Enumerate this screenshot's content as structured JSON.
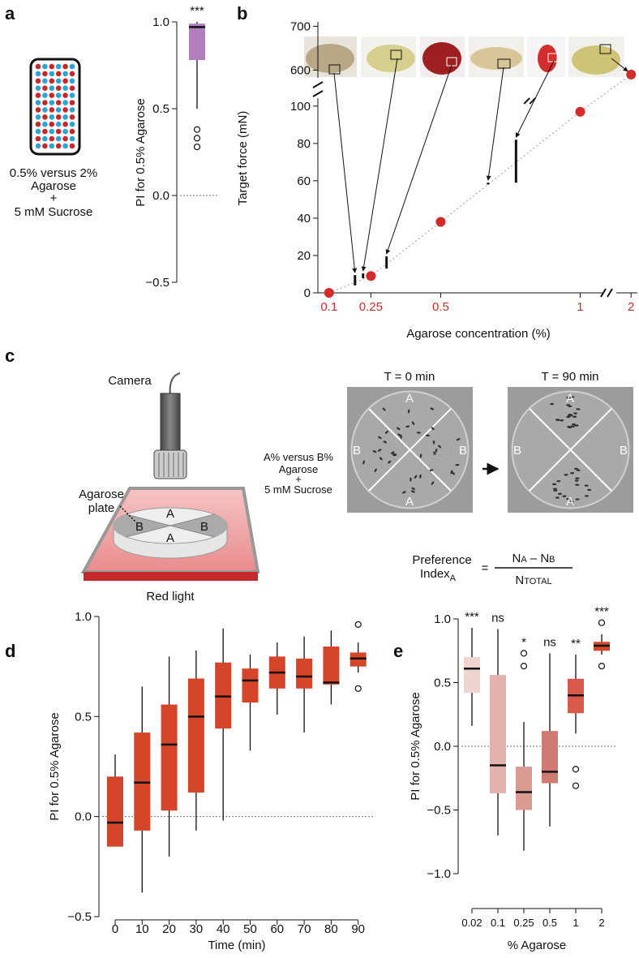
{
  "panel_labels": [
    "a",
    "b",
    "c",
    "d",
    "e"
  ],
  "chart_data": [
    {
      "type": "box",
      "y_label": "PI for 0.5% Agarose",
      "condition": [
        "0.5% versus 2%",
        "Agarose",
        "+",
        "5 mM Sucrose"
      ],
      "ylim": [
        -0.5,
        1.0
      ],
      "yticks": [
        {
          "value": -0.5,
          "label": "−0.5"
        },
        {
          "value": 0,
          "label": "0.0"
        },
        0.5,
        {
          "value": 1,
          "label": "1.0"
        }
      ],
      "ref_line": 0,
      "color": "#b27ebe",
      "boxes": [
        {
          "low": 0.5,
          "q1": 0.78,
          "median": 0.97,
          "q3": 0.99,
          "high": 1.0,
          "outliers": [
            0.38,
            0.33,
            0.28
          ]
        }
      ],
      "annotations": [
        "***"
      ]
    },
    {
      "type": "scatter",
      "y_label": "Target force (mN)",
      "x_label": "Agarose concentration (%)",
      "x": [
        0.1,
        0.25,
        0.5,
        1,
        2
      ],
      "values": [
        0,
        9,
        38,
        97,
        590
      ],
      "color": "#d42a2a",
      "xlim": [
        0.06,
        2.03
      ],
      "x_break": [
        1.08,
        1.93
      ],
      "xticks": [
        0.1,
        0.25,
        0.5,
        1,
        2
      ],
      "ylim": [
        0,
        710
      ],
      "y_break": [
        106,
        575
      ],
      "yticks": [
        0,
        20,
        40,
        60,
        80,
        100,
        600,
        700
      ],
      "ranges": [
        {
          "x": 0.193,
          "low": 4,
          "high": 9.5
        },
        {
          "x": 0.222,
          "low": 7.8,
          "high": 10.4
        },
        {
          "x": 0.306,
          "low": 13,
          "high": 19.5
        },
        {
          "x": 0.67,
          "low": 58,
          "high": 59
        },
        {
          "x": 0.77,
          "low": 59,
          "high": 82
        }
      ]
    },
    {
      "type": "box",
      "y_label": "PI for 0.5% Agarose",
      "x_label": "Time (min)",
      "categories": [
        "0",
        "10",
        "20",
        "30",
        "40",
        "50",
        "60",
        "70",
        "80",
        "90"
      ],
      "ylim": [
        -0.5,
        1.0
      ],
      "yticks": [
        {
          "value": -0.5,
          "label": "−0.5"
        },
        {
          "value": 0,
          "label": "0.0"
        },
        0.5,
        {
          "value": 1,
          "label": "1.0"
        }
      ],
      "ref_line": 0,
      "color": "#d4452a",
      "boxes": [
        {
          "low": -0.15,
          "q1": -0.15,
          "median": -0.03,
          "q3": 0.2,
          "high": 0.31,
          "outliers": []
        },
        {
          "low": -0.38,
          "q1": -0.07,
          "median": 0.17,
          "q3": 0.42,
          "high": 0.65,
          "outliers": []
        },
        {
          "low": -0.2,
          "q1": 0.03,
          "median": 0.36,
          "q3": 0.56,
          "high": 0.8,
          "outliers": []
        },
        {
          "low": -0.07,
          "q1": 0.12,
          "median": 0.5,
          "q3": 0.69,
          "high": 0.83,
          "outliers": []
        },
        {
          "low": -0.02,
          "q1": 0.44,
          "median": 0.6,
          "q3": 0.77,
          "high": 0.94,
          "outliers": []
        },
        {
          "low": 0.33,
          "q1": 0.57,
          "median": 0.68,
          "q3": 0.74,
          "high": 0.81,
          "outliers": []
        },
        {
          "low": 0.51,
          "q1": 0.64,
          "median": 0.72,
          "q3": 0.8,
          "high": 0.87,
          "outliers": []
        },
        {
          "low": 0.42,
          "q1": 0.64,
          "median": 0.7,
          "q3": 0.79,
          "high": 0.9,
          "outliers": []
        },
        {
          "low": 0.56,
          "q1": 0.66,
          "median": 0.67,
          "q3": 0.85,
          "high": 0.93,
          "outliers": []
        },
        {
          "low": 0.72,
          "q1": 0.75,
          "median": 0.79,
          "q3": 0.82,
          "high": 0.87,
          "outliers": [
            0.96,
            0.64
          ]
        }
      ]
    },
    {
      "type": "box",
      "y_label": "PI for 0.5% Agarose",
      "x_label": "% Agarose",
      "categories": [
        "0.02",
        "0.1",
        "0.25",
        "0.5",
        "1",
        "2"
      ],
      "ylim": [
        -1.0,
        1.0
      ],
      "yticks": [
        {
          "value": -1,
          "label": "−1.0"
        },
        {
          "value": -0.5,
          "label": "−0.5"
        },
        {
          "value": 0,
          "label": "0.0"
        },
        0.5,
        {
          "value": 1,
          "label": "1.0"
        }
      ],
      "ref_line": 0,
      "colors": [
        "#efd4d0",
        "#e2b3ac",
        "#da9b93",
        "#cf7b71",
        "#d95a4a",
        "#d4452a"
      ],
      "boxes": [
        {
          "low": 0.16,
          "q1": 0.42,
          "median": 0.61,
          "q3": 0.7,
          "high": 0.93,
          "outliers": []
        },
        {
          "low": -0.7,
          "q1": -0.37,
          "median": -0.15,
          "q3": 0.56,
          "high": 0.92,
          "outliers": []
        },
        {
          "low": -0.82,
          "q1": -0.5,
          "median": -0.36,
          "q3": -0.16,
          "high": 0.19,
          "outliers": [
            0.73,
            0.63
          ]
        },
        {
          "low": -0.63,
          "q1": -0.29,
          "median": -0.2,
          "q3": 0.12,
          "high": 0.73,
          "outliers": []
        },
        {
          "low": 0.1,
          "q1": 0.26,
          "median": 0.4,
          "q3": 0.53,
          "high": 0.72,
          "outliers": [
            -0.18,
            -0.31
          ]
        },
        {
          "low": 0.72,
          "q1": 0.75,
          "median": 0.79,
          "q3": 0.82,
          "high": 0.88,
          "outliers": [
            0.97,
            0.63
          ]
        }
      ],
      "annotations": [
        "***",
        "ns",
        "*",
        "ns",
        "**",
        "***"
      ]
    }
  ],
  "diagram": {
    "camera": "Camera",
    "plate": [
      "Agarose",
      "plate"
    ],
    "quadrants": [
      "A",
      "B",
      "B",
      "A"
    ],
    "light": "Red light",
    "condition": [
      "A% versus B%",
      "Agarose",
      "+",
      "5 mM Sucrose"
    ],
    "photos": [
      {
        "title": "T = 0 min",
        "labels": [
          "A",
          "B",
          "B",
          "A"
        ]
      },
      {
        "title": "T = 90 min",
        "labels": [
          "A",
          "B",
          "B",
          "A"
        ]
      }
    ],
    "formula": {
      "lhs": [
        "Preference",
        "Index"
      ],
      "lhs_sub": "A",
      "eq": "=",
      "numerator": [
        "N",
        "A",
        " – N",
        "B"
      ],
      "denominator": [
        "N",
        "TOTAL"
      ]
    }
  }
}
